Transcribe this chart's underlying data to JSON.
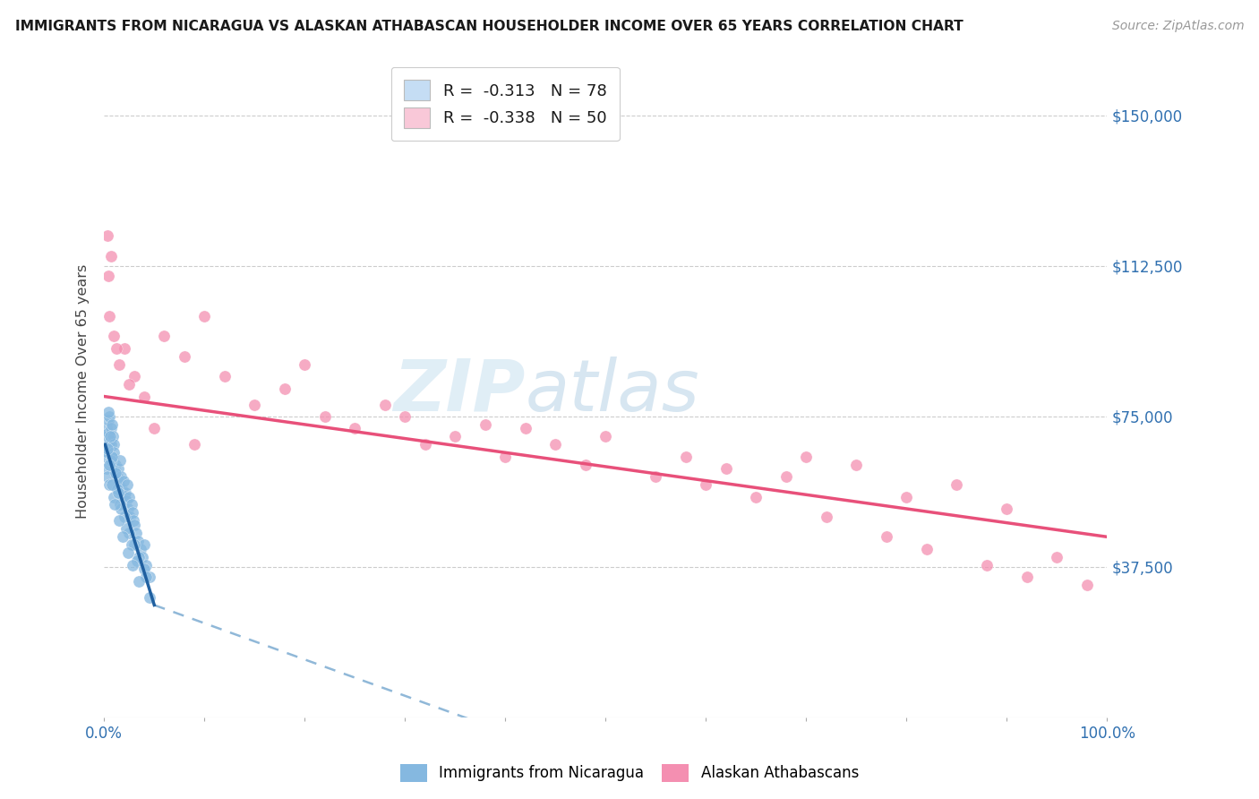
{
  "title": "IMMIGRANTS FROM NICARAGUA VS ALASKAN ATHABASCAN HOUSEHOLDER INCOME OVER 65 YEARS CORRELATION CHART",
  "source": "Source: ZipAtlas.com",
  "ylabel": "Householder Income Over 65 years",
  "y_ticks": [
    0,
    37500,
    75000,
    112500,
    150000
  ],
  "y_tick_labels": [
    "",
    "$37,500",
    "$75,000",
    "$112,500",
    "$150,000"
  ],
  "legend_1_label": "R =  -0.313   N = 78",
  "legend_2_label": "R =  -0.338   N = 50",
  "legend_1_color": "#c5ddf4",
  "legend_2_color": "#f9c8d8",
  "scatter_blue_color": "#85b8e0",
  "scatter_pink_color": "#f48fb1",
  "trend_blue_color": "#2060a0",
  "trend_pink_color": "#e8507a",
  "trend_blue_dashed_color": "#90b8d8",
  "watermark_zip": "ZIP",
  "watermark_atlas": "atlas",
  "blue_x": [
    0.15,
    0.2,
    0.25,
    0.3,
    0.35,
    0.4,
    0.45,
    0.5,
    0.55,
    0.6,
    0.65,
    0.7,
    0.75,
    0.8,
    0.85,
    0.9,
    0.95,
    1.0,
    1.1,
    1.2,
    1.3,
    1.4,
    1.5,
    1.6,
    1.7,
    1.8,
    1.9,
    2.0,
    2.1,
    2.2,
    2.3,
    2.4,
    2.5,
    2.6,
    2.7,
    2.8,
    2.9,
    3.0,
    3.2,
    3.4,
    3.6,
    3.8,
    4.0,
    4.2,
    4.5,
    0.2,
    0.3,
    0.5,
    0.7,
    1.0,
    1.3,
    1.6,
    2.0,
    2.5,
    3.0,
    3.5,
    4.0,
    0.4,
    0.6,
    0.8,
    1.1,
    1.4,
    1.7,
    2.2,
    2.7,
    3.3,
    4.2,
    0.35,
    0.55,
    0.75,
    1.05,
    1.45,
    1.85,
    2.35,
    2.85,
    3.45,
    4.5
  ],
  "blue_y": [
    68000,
    72000,
    65000,
    70000,
    66000,
    74000,
    71000,
    75000,
    67000,
    69000,
    72000,
    68000,
    64000,
    73000,
    65000,
    70000,
    68000,
    66000,
    63000,
    61000,
    60000,
    62000,
    58000,
    64000,
    60000,
    57000,
    59000,
    55000,
    56000,
    54000,
    58000,
    52000,
    55000,
    50000,
    53000,
    51000,
    49000,
    48000,
    46000,
    44000,
    42000,
    40000,
    43000,
    38000,
    35000,
    62000,
    60000,
    58000,
    64000,
    55000,
    57000,
    53000,
    50000,
    46000,
    43000,
    40000,
    37000,
    76000,
    70000,
    65000,
    61000,
    56000,
    52000,
    47000,
    43000,
    39000,
    35000,
    67000,
    63000,
    58000,
    53000,
    49000,
    45000,
    41000,
    38000,
    34000,
    30000
  ],
  "pink_x": [
    0.3,
    0.5,
    0.7,
    1.0,
    1.5,
    2.0,
    3.0,
    4.0,
    6.0,
    8.0,
    10.0,
    12.0,
    15.0,
    18.0,
    20.0,
    22.0,
    25.0,
    28.0,
    30.0,
    32.0,
    35.0,
    38.0,
    40.0,
    42.0,
    45.0,
    48.0,
    50.0,
    55.0,
    58.0,
    60.0,
    62.0,
    65.0,
    68.0,
    70.0,
    72.0,
    75.0,
    78.0,
    80.0,
    82.0,
    85.0,
    88.0,
    90.0,
    92.0,
    95.0,
    98.0,
    0.4,
    1.2,
    2.5,
    5.0,
    9.0
  ],
  "pink_y": [
    120000,
    100000,
    115000,
    95000,
    88000,
    92000,
    85000,
    80000,
    95000,
    90000,
    100000,
    85000,
    78000,
    82000,
    88000,
    75000,
    72000,
    78000,
    75000,
    68000,
    70000,
    73000,
    65000,
    72000,
    68000,
    63000,
    70000,
    60000,
    65000,
    58000,
    62000,
    55000,
    60000,
    65000,
    50000,
    63000,
    45000,
    55000,
    42000,
    58000,
    38000,
    52000,
    35000,
    40000,
    33000,
    110000,
    92000,
    83000,
    72000,
    68000
  ]
}
